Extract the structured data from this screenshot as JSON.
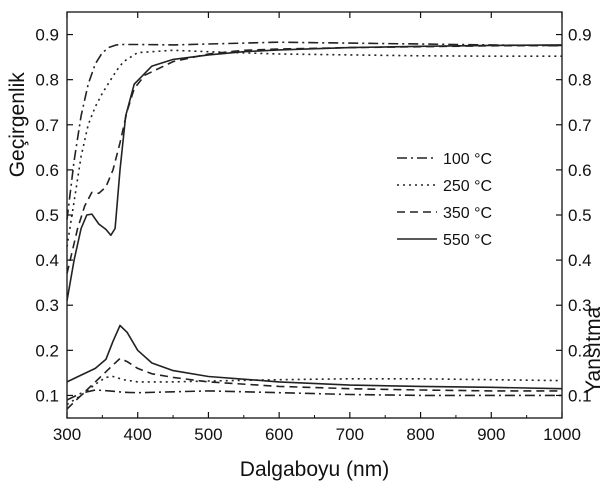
{
  "chart_data": {
    "type": "line",
    "xlabel": "Dalgaboyu (nm)",
    "ylabel_left": "Geçirgenlik",
    "ylabel_right": "Yansıtma",
    "xlim": [
      300,
      1000
    ],
    "ylim": [
      0.05,
      0.95
    ],
    "x_ticks": [
      "300",
      "400",
      "500",
      "600",
      "700",
      "800",
      "900",
      "1000"
    ],
    "y_ticks": [
      "0.1",
      "0.2",
      "0.3",
      "0.4",
      "0.5",
      "0.6",
      "0.7",
      "0.8",
      "0.9"
    ],
    "grid": false,
    "legend_position": "center-right",
    "series": [
      {
        "name": "100 °C",
        "style": "dashdot",
        "transmittance": [
          [
            300,
            0.49
          ],
          [
            310,
            0.62
          ],
          [
            320,
            0.72
          ],
          [
            330,
            0.79
          ],
          [
            340,
            0.835
          ],
          [
            350,
            0.86
          ],
          [
            360,
            0.872
          ],
          [
            370,
            0.877
          ],
          [
            380,
            0.878
          ],
          [
            400,
            0.878
          ],
          [
            450,
            0.877
          ],
          [
            500,
            0.879
          ],
          [
            550,
            0.881
          ],
          [
            600,
            0.883
          ],
          [
            650,
            0.882
          ],
          [
            700,
            0.881
          ],
          [
            750,
            0.88
          ],
          [
            800,
            0.879
          ],
          [
            850,
            0.878
          ],
          [
            900,
            0.877
          ],
          [
            950,
            0.876
          ],
          [
            1000,
            0.875
          ]
        ],
        "reflectance": [
          [
            300,
            0.09
          ],
          [
            320,
            0.105
          ],
          [
            340,
            0.112
          ],
          [
            360,
            0.11
          ],
          [
            380,
            0.107
          ],
          [
            400,
            0.106
          ],
          [
            450,
            0.108
          ],
          [
            500,
            0.11
          ],
          [
            550,
            0.108
          ],
          [
            600,
            0.106
          ],
          [
            700,
            0.102
          ],
          [
            800,
            0.1
          ],
          [
            900,
            0.1
          ],
          [
            1000,
            0.1
          ]
        ]
      },
      {
        "name": "250 °C",
        "style": "dotted",
        "transmittance": [
          [
            300,
            0.43
          ],
          [
            310,
            0.53
          ],
          [
            320,
            0.63
          ],
          [
            330,
            0.7
          ],
          [
            340,
            0.74
          ],
          [
            350,
            0.77
          ],
          [
            360,
            0.795
          ],
          [
            370,
            0.82
          ],
          [
            380,
            0.84
          ],
          [
            400,
            0.86
          ],
          [
            450,
            0.865
          ],
          [
            500,
            0.862
          ],
          [
            600,
            0.857
          ],
          [
            700,
            0.855
          ],
          [
            800,
            0.853
          ],
          [
            900,
            0.852
          ],
          [
            1000,
            0.852
          ]
        ],
        "reflectance": [
          [
            300,
            0.08
          ],
          [
            320,
            0.1
          ],
          [
            340,
            0.125
          ],
          [
            355,
            0.14
          ],
          [
            365,
            0.142
          ],
          [
            380,
            0.135
          ],
          [
            400,
            0.13
          ],
          [
            450,
            0.13
          ],
          [
            500,
            0.132
          ],
          [
            600,
            0.135
          ],
          [
            700,
            0.137
          ],
          [
            800,
            0.137
          ],
          [
            900,
            0.135
          ],
          [
            1000,
            0.133
          ]
        ]
      },
      {
        "name": "350 °C",
        "style": "dashed",
        "transmittance": [
          [
            300,
            0.37
          ],
          [
            315,
            0.47
          ],
          [
            325,
            0.52
          ],
          [
            335,
            0.55
          ],
          [
            345,
            0.548
          ],
          [
            355,
            0.562
          ],
          [
            365,
            0.6
          ],
          [
            375,
            0.66
          ],
          [
            385,
            0.73
          ],
          [
            395,
            0.78
          ],
          [
            410,
            0.81
          ],
          [
            450,
            0.84
          ],
          [
            500,
            0.857
          ],
          [
            550,
            0.865
          ],
          [
            600,
            0.868
          ],
          [
            700,
            0.871
          ],
          [
            800,
            0.873
          ],
          [
            900,
            0.875
          ],
          [
            1000,
            0.876
          ]
        ],
        "reflectance": [
          [
            300,
            0.07
          ],
          [
            320,
            0.1
          ],
          [
            340,
            0.13
          ],
          [
            360,
            0.16
          ],
          [
            375,
            0.182
          ],
          [
            385,
            0.175
          ],
          [
            400,
            0.16
          ],
          [
            420,
            0.148
          ],
          [
            450,
            0.14
          ],
          [
            500,
            0.13
          ],
          [
            600,
            0.12
          ],
          [
            700,
            0.115
          ],
          [
            800,
            0.112
          ],
          [
            900,
            0.11
          ],
          [
            1000,
            0.11
          ]
        ]
      },
      {
        "name": "550 °C",
        "style": "solid",
        "transmittance": [
          [
            300,
            0.31
          ],
          [
            310,
            0.4
          ],
          [
            320,
            0.47
          ],
          [
            328,
            0.5
          ],
          [
            335,
            0.502
          ],
          [
            345,
            0.48
          ],
          [
            355,
            0.468
          ],
          [
            362,
            0.455
          ],
          [
            368,
            0.47
          ],
          [
            375,
            0.6
          ],
          [
            383,
            0.72
          ],
          [
            395,
            0.79
          ],
          [
            420,
            0.83
          ],
          [
            450,
            0.845
          ],
          [
            500,
            0.855
          ],
          [
            550,
            0.862
          ],
          [
            600,
            0.866
          ],
          [
            700,
            0.871
          ],
          [
            800,
            0.874
          ],
          [
            900,
            0.876
          ],
          [
            1000,
            0.877
          ]
        ],
        "reflectance": [
          [
            300,
            0.13
          ],
          [
            320,
            0.145
          ],
          [
            340,
            0.16
          ],
          [
            355,
            0.18
          ],
          [
            365,
            0.22
          ],
          [
            375,
            0.255
          ],
          [
            385,
            0.24
          ],
          [
            400,
            0.2
          ],
          [
            420,
            0.172
          ],
          [
            450,
            0.155
          ],
          [
            500,
            0.142
          ],
          [
            600,
            0.13
          ],
          [
            700,
            0.123
          ],
          [
            800,
            0.12
          ],
          [
            900,
            0.118
          ],
          [
            1000,
            0.115
          ]
        ]
      }
    ]
  }
}
